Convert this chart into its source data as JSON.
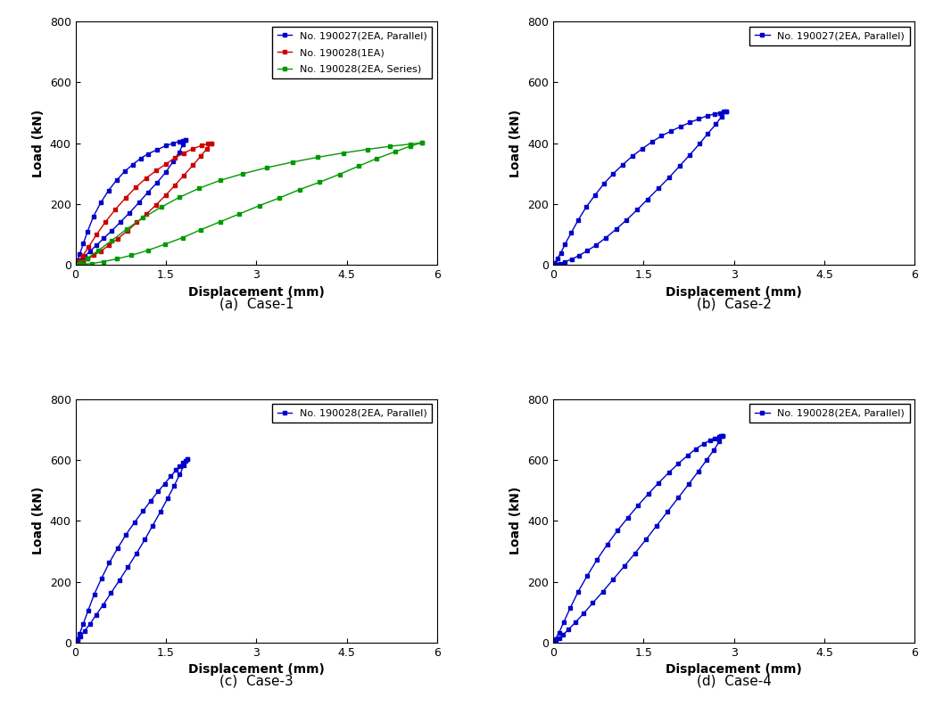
{
  "subplots": [
    {
      "label": "(a)  Case-1",
      "legend_entries": [
        {
          "label": "No. 190027(2EA, Parallel)",
          "color": "#0000CC"
        },
        {
          "label": "No. 190028(1EA)",
          "color": "#CC0000"
        },
        {
          "label": "No. 190028(2EA, Series)",
          "color": "#009900"
        }
      ],
      "series": [
        {
          "color": "#0000CC",
          "loading_x": [
            0,
            0.03,
            0.07,
            0.13,
            0.2,
            0.3,
            0.42,
            0.55,
            0.68,
            0.82,
            0.95,
            1.08,
            1.2,
            1.35,
            1.5,
            1.62,
            1.72,
            1.78,
            1.82
          ],
          "loading_y": [
            0,
            15,
            35,
            70,
            110,
            160,
            205,
            245,
            278,
            308,
            330,
            350,
            365,
            378,
            392,
            400,
            406,
            408,
            410
          ],
          "unloading_x": [
            1.82,
            1.78,
            1.72,
            1.62,
            1.5,
            1.35,
            1.2,
            1.05,
            0.9,
            0.75,
            0.6,
            0.47,
            0.35,
            0.24,
            0.15,
            0.08,
            0.03,
            0.0
          ],
          "unloading_y": [
            410,
            395,
            370,
            340,
            305,
            270,
            238,
            205,
            172,
            142,
            112,
            88,
            65,
            45,
            28,
            15,
            5,
            0
          ]
        },
        {
          "color": "#CC0000",
          "loading_x": [
            0,
            0.05,
            0.12,
            0.22,
            0.35,
            0.5,
            0.66,
            0.83,
            1.0,
            1.17,
            1.34,
            1.5,
            1.65,
            1.8,
            1.95,
            2.1,
            2.2,
            2.25
          ],
          "loading_y": [
            0,
            12,
            30,
            60,
            100,
            142,
            182,
            220,
            255,
            285,
            310,
            332,
            352,
            368,
            382,
            393,
            398,
            400
          ],
          "unloading_x": [
            2.25,
            2.18,
            2.08,
            1.95,
            1.8,
            1.65,
            1.5,
            1.34,
            1.18,
            1.02,
            0.86,
            0.7,
            0.55,
            0.42,
            0.3,
            0.2,
            0.12,
            0.06,
            0.02,
            0.0
          ],
          "unloading_y": [
            400,
            382,
            358,
            328,
            295,
            262,
            230,
            198,
            168,
            140,
            112,
            86,
            64,
            46,
            32,
            20,
            12,
            6,
            2,
            0
          ]
        },
        {
          "color": "#009900",
          "loading_x": [
            0,
            0.08,
            0.2,
            0.38,
            0.6,
            0.85,
            1.12,
            1.42,
            1.72,
            2.05,
            2.4,
            2.78,
            3.18,
            3.6,
            4.02,
            4.44,
            4.85,
            5.22,
            5.55,
            5.75
          ],
          "loading_y": [
            0,
            8,
            22,
            48,
            80,
            118,
            155,
            190,
            222,
            252,
            278,
            300,
            320,
            338,
            354,
            368,
            380,
            390,
            397,
            402
          ],
          "unloading_x": [
            5.75,
            5.55,
            5.3,
            5.0,
            4.7,
            4.38,
            4.05,
            3.72,
            3.38,
            3.05,
            2.72,
            2.4,
            2.08,
            1.78,
            1.48,
            1.2,
            0.93,
            0.68,
            0.46,
            0.28,
            0.14,
            0.05,
            0.0
          ],
          "unloading_y": [
            402,
            390,
            372,
            350,
            325,
            298,
            272,
            248,
            220,
            195,
            168,
            142,
            116,
            90,
            68,
            48,
            32,
            20,
            11,
            5,
            2,
            0,
            0
          ]
        }
      ],
      "xlim": [
        0,
        6
      ],
      "ylim": [
        0,
        800
      ],
      "xticks": [
        0,
        1.5,
        3,
        4.5,
        6
      ],
      "yticks": [
        0,
        200,
        400,
        600,
        800
      ],
      "xlabel": "Displacement (mm)",
      "ylabel": "Load (kN)"
    },
    {
      "label": "(b)  Case-2",
      "legend_entries": [
        {
          "label": "No. 190027(2EA, Parallel)",
          "color": "#0000CC"
        }
      ],
      "series": [
        {
          "color": "#0000CC",
          "loading_x": [
            0,
            0.03,
            0.07,
            0.13,
            0.2,
            0.3,
            0.42,
            0.55,
            0.7,
            0.85,
            1.0,
            1.16,
            1.32,
            1.48,
            1.64,
            1.8,
            1.96,
            2.12,
            2.27,
            2.42,
            2.56,
            2.68,
            2.77,
            2.83,
            2.87
          ],
          "loading_y": [
            0,
            8,
            20,
            40,
            68,
            105,
            148,
            190,
            230,
            268,
            300,
            330,
            358,
            382,
            404,
            424,
            440,
            455,
            468,
            480,
            490,
            496,
            500,
            503,
            505
          ],
          "unloading_x": [
            2.87,
            2.8,
            2.7,
            2.57,
            2.43,
            2.27,
            2.1,
            1.93,
            1.75,
            1.57,
            1.4,
            1.22,
            1.05,
            0.88,
            0.72,
            0.57,
            0.43,
            0.31,
            0.2,
            0.12,
            0.06,
            0.02,
            0.0
          ],
          "unloading_y": [
            505,
            488,
            462,
            432,
            398,
            362,
            325,
            288,
            252,
            216,
            182,
            148,
            118,
            90,
            66,
            47,
            31,
            19,
            11,
            5,
            2,
            0,
            0
          ]
        }
      ],
      "xlim": [
        0,
        6
      ],
      "ylim": [
        0,
        800
      ],
      "xticks": [
        0,
        1.5,
        3,
        4.5,
        6
      ],
      "yticks": [
        0,
        200,
        400,
        600,
        800
      ],
      "xlabel": "Displacement (mm)",
      "ylabel": "Load (kN)"
    },
    {
      "label": "(c)  Case-3",
      "legend_entries": [
        {
          "label": "No. 190028(2EA, Parallel)",
          "color": "#0000CC"
        }
      ],
      "series": [
        {
          "color": "#0000CC",
          "loading_x": [
            0,
            0.03,
            0.07,
            0.13,
            0.21,
            0.31,
            0.43,
            0.56,
            0.7,
            0.84,
            0.98,
            1.12,
            1.25,
            1.37,
            1.48,
            1.58,
            1.67,
            1.73,
            1.78,
            1.82,
            1.85
          ],
          "loading_y": [
            0,
            12,
            30,
            62,
            105,
            158,
            210,
            262,
            310,
            355,
            395,
            432,
            466,
            496,
            522,
            546,
            567,
            580,
            590,
            597,
            603
          ],
          "unloading_x": [
            1.85,
            1.8,
            1.73,
            1.64,
            1.53,
            1.41,
            1.28,
            1.15,
            1.01,
            0.87,
            0.73,
            0.59,
            0.46,
            0.34,
            0.24,
            0.15,
            0.08,
            0.03,
            0.0
          ],
          "unloading_y": [
            603,
            582,
            552,
            516,
            474,
            430,
            384,
            338,
            292,
            248,
            205,
            163,
            124,
            90,
            61,
            38,
            20,
            7,
            0
          ]
        }
      ],
      "xlim": [
        0,
        6
      ],
      "ylim": [
        0,
        800
      ],
      "xticks": [
        0,
        1.5,
        3,
        4.5,
        6
      ],
      "yticks": [
        0,
        200,
        400,
        600,
        800
      ],
      "xlabel": "Displacement (mm)",
      "ylabel": "Load (kN)"
    },
    {
      "label": "(d)  Case-4",
      "legend_entries": [
        {
          "label": "No. 190028(2EA, Parallel)",
          "color": "#0000CC"
        }
      ],
      "series": [
        {
          "color": "#0000CC",
          "loading_x": [
            0,
            0.04,
            0.1,
            0.18,
            0.29,
            0.42,
            0.57,
            0.73,
            0.9,
            1.07,
            1.24,
            1.41,
            1.58,
            1.75,
            1.92,
            2.08,
            2.23,
            2.37,
            2.5,
            2.6,
            2.68,
            2.75,
            2.79,
            2.82
          ],
          "loading_y": [
            0,
            12,
            32,
            68,
            115,
            168,
            220,
            272,
            322,
            368,
            410,
            450,
            488,
            524,
            558,
            588,
            614,
            636,
            653,
            664,
            671,
            676,
            679,
            680
          ],
          "unloading_x": [
            2.82,
            2.76,
            2.67,
            2.55,
            2.41,
            2.25,
            2.08,
            1.9,
            1.72,
            1.54,
            1.36,
            1.18,
            1.0,
            0.83,
            0.66,
            0.51,
            0.38,
            0.26,
            0.17,
            0.1,
            0.05,
            0.01,
            0.0
          ],
          "unloading_y": [
            680,
            660,
            633,
            600,
            562,
            520,
            476,
            430,
            384,
            338,
            293,
            250,
            208,
            168,
            130,
            96,
            68,
            44,
            26,
            13,
            5,
            1,
            0
          ]
        }
      ],
      "xlim": [
        0,
        6
      ],
      "ylim": [
        0,
        800
      ],
      "xticks": [
        0,
        1.5,
        3,
        4.5,
        6
      ],
      "yticks": [
        0,
        200,
        400,
        600,
        800
      ],
      "xlabel": "Displacement (mm)",
      "ylabel": "Load (kN)"
    }
  ],
  "bg_color": "#ffffff",
  "marker": "s",
  "markersize": 3.5,
  "linewidth": 1.0,
  "captions": [
    "(a)  Case-1",
    "(b)  Case-2",
    "(c)  Case-3",
    "(d)  Case-4"
  ]
}
